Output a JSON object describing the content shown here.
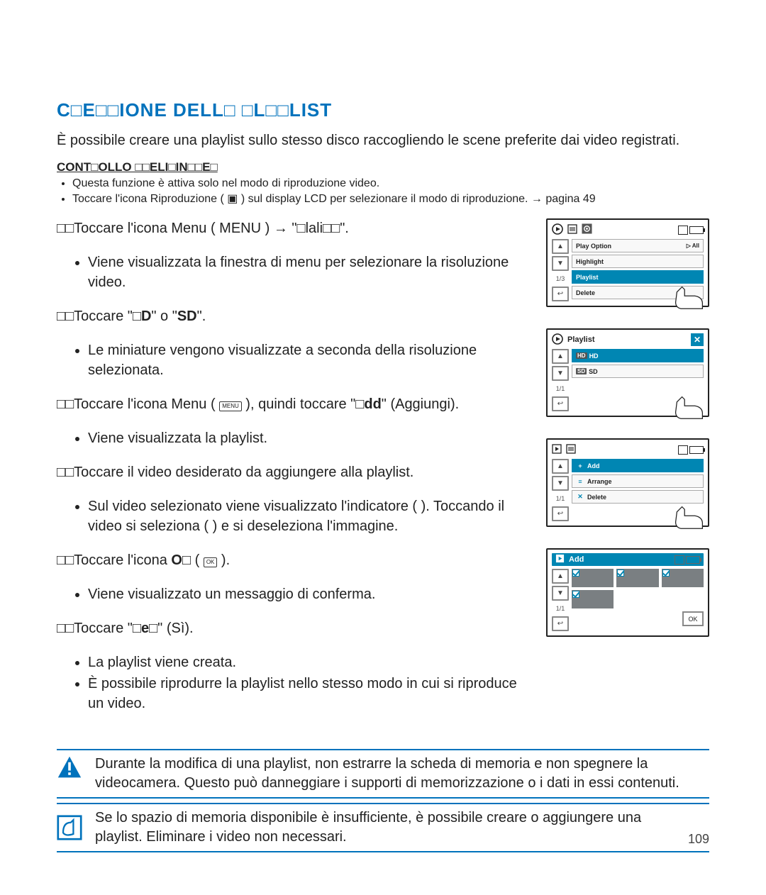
{
  "title": "C□E□□IONE DELL□ □L□□LIST",
  "intro": "È possibile creare una playlist sullo stesso disco raccogliendo le scene preferite dai video registrati.",
  "prelim_title": "CONT□OLLO □□ELI□IN□□E□",
  "prelim": [
    "Questa funzione è attiva solo nel modo di riproduzione video.",
    "Toccare l'icona Riproduzione ( ▣ ) sul display LCD per selezionare il modo di riproduzione. → pagina 49"
  ],
  "steps": [
    {
      "main": "□□Toccare l'icona Menu ( MENU ) → \"□lali□□\".",
      "main_strong": null,
      "sub": [
        "Viene visualizzata la finestra di menu per selezionare la risoluzione video."
      ]
    },
    {
      "main": "□□Toccare \"",
      "main_rich": [
        {
          "t": "□□Toccare \""
        },
        {
          "t": "□D",
          "b": true
        },
        {
          "t": "\" o \""
        },
        {
          "t": "SD",
          "b": true
        },
        {
          "t": "\"."
        }
      ],
      "sub": [
        "Le miniature vengono visualizzate a seconda della risoluzione selezionata."
      ]
    },
    {
      "main_rich": [
        {
          "t": "□□Toccare l'icona Menu ( "
        },
        {
          "t": "MENU",
          "box": true
        },
        {
          "t": " ), quindi toccare \""
        },
        {
          "t": "□dd",
          "b": true
        },
        {
          "t": "\" (Aggiungi)."
        }
      ],
      "sub": [
        "Viene visualizzata la playlist."
      ]
    },
    {
      "main_rich": [
        {
          "t": "□□Toccare il video desiderato da aggiungere alla playlist."
        }
      ],
      "sub": [
        "Sul video selezionato viene visualizzato l'indicatore (  ). Toccando il video si seleziona (  ) e si deseleziona l'immagine."
      ]
    },
    {
      "main_rich": [
        {
          "t": "□□Toccare l'icona "
        },
        {
          "t": "O□",
          "b": true
        },
        {
          "t": " ( "
        },
        {
          "t": "OK",
          "box": true
        },
        {
          "t": " )."
        }
      ],
      "sub": [
        "Viene visualizzato un messaggio di conferma."
      ]
    },
    {
      "main_rich": [
        {
          "t": "□□Toccare \""
        },
        {
          "t": "□e□",
          "b": true
        },
        {
          "t": "\" (Sì)."
        }
      ],
      "sub": [
        "La playlist viene creata.",
        "È possibile riprodurre la playlist nello stesso modo in cui si riproduce un video."
      ]
    }
  ],
  "mini1": {
    "rows": [
      "Play Option",
      "Highlight",
      "Playlist",
      "Delete"
    ],
    "selected_index": 2,
    "right_label": "▷ All",
    "page": "1/3"
  },
  "mini2": {
    "title": "Playlist",
    "rows": [
      {
        "badge": "HD",
        "label": "HD"
      },
      {
        "badge": "SD",
        "label": "SD"
      }
    ],
    "selected_index": 0,
    "page": "1/1"
  },
  "mini3": {
    "rows": [
      {
        "icon": "+",
        "label": "Add",
        "sel": true
      },
      {
        "icon": "≡",
        "label": "Arrange"
      },
      {
        "icon": "✕",
        "label": "Delete"
      }
    ],
    "page": "1/1"
  },
  "mini4": {
    "title": "Add",
    "page": "1/1",
    "ok": "OK",
    "thumbs": [
      true,
      true,
      true,
      true,
      false,
      false
    ]
  },
  "note_warn": "Durante la modifica di una playlist, non estrarre la scheda di memoria e non spegnere la videocamera. Questo può danneggiare i supporti di memorizzazione o i dati in essi contenuti.",
  "note_info": "Se lo spazio di memoria disponibile è insufficiente, è possibile creare o aggiungere una playlist. Eliminare i video non necessari.",
  "page_number": "109"
}
